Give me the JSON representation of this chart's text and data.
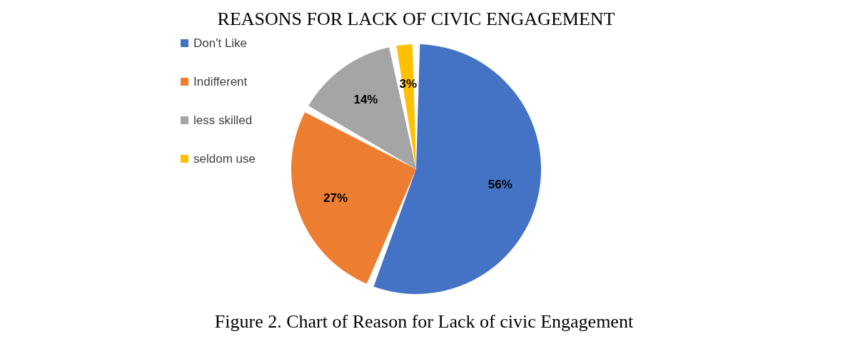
{
  "chart_data": {
    "type": "pie",
    "title": "REASONS FOR LACK OF CIVIC ENGAGEMENT",
    "categories": [
      "Don't Like",
      "Indifferent",
      "less skilled",
      "seldom use"
    ],
    "values": [
      56,
      27,
      14,
      3
    ],
    "colors": [
      "#4472c4",
      "#ed7d31",
      "#a5a5a5",
      "#ffc000"
    ],
    "value_labels": [
      "56%",
      "27%",
      "14%",
      "3%"
    ],
    "legend": "left",
    "annotations": [
      "Figure 2. Chart of Reason for Lack of civic Engagement"
    ]
  }
}
